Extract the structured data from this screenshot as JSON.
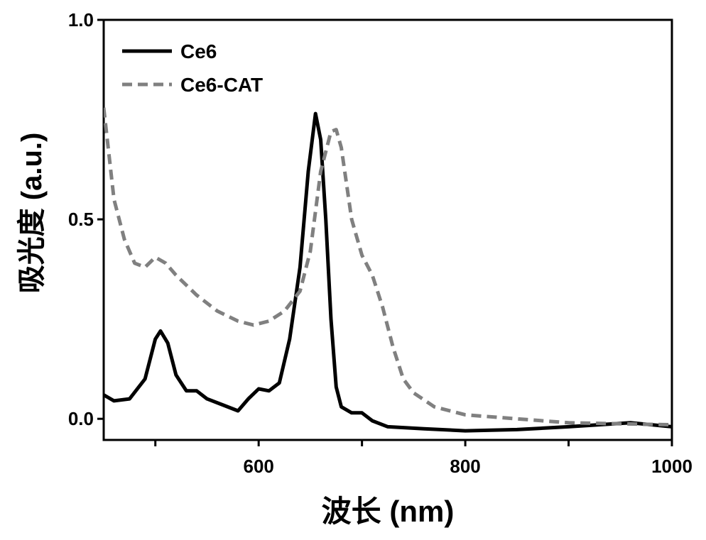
{
  "chart_data": {
    "type": "line",
    "title": "",
    "xlabel": "波长 (nm)",
    "ylabel": "吸光度 (a.u.)",
    "xlim": [
      450,
      1000
    ],
    "ylim": [
      -0.053,
      1.0
    ],
    "xticks": [
      500,
      600,
      700,
      800,
      900,
      1000
    ],
    "xtick_labels": [
      "600",
      "800",
      "1000"
    ],
    "xtick_label_values": [
      600,
      800,
      1000
    ],
    "yticks": [
      0.0,
      0.5,
      1.0
    ],
    "ytick_labels": [
      "0.0",
      "0.5",
      "1.0"
    ],
    "grid": false,
    "legend_position": "top-left",
    "series": [
      {
        "name": "Ce6",
        "color": "#000000",
        "style": "solid",
        "x": [
          450,
          460,
          475,
          490,
          500,
          505,
          512,
          520,
          530,
          540,
          550,
          565,
          580,
          590,
          600,
          610,
          620,
          630,
          640,
          648,
          655,
          660,
          665,
          670,
          675,
          680,
          690,
          700,
          710,
          725,
          760,
          800,
          850,
          900,
          960,
          1000
        ],
        "y": [
          0.06,
          0.045,
          0.05,
          0.1,
          0.2,
          0.22,
          0.19,
          0.11,
          0.07,
          0.07,
          0.05,
          0.035,
          0.02,
          0.05,
          0.075,
          0.07,
          0.09,
          0.2,
          0.38,
          0.62,
          0.765,
          0.7,
          0.5,
          0.25,
          0.08,
          0.03,
          0.015,
          0.015,
          -0.005,
          -0.02,
          -0.025,
          -0.03,
          -0.027,
          -0.02,
          -0.01,
          -0.02
        ]
      },
      {
        "name": "Ce6-CAT",
        "color": "#808080",
        "style": "dashed",
        "x": [
          450,
          460,
          470,
          480,
          490,
          500,
          510,
          520,
          540,
          560,
          580,
          595,
          610,
          625,
          640,
          650,
          660,
          670,
          675,
          680,
          690,
          700,
          710,
          720,
          730,
          740,
          750,
          770,
          800,
          850,
          900,
          1000
        ],
        "y": [
          0.78,
          0.55,
          0.45,
          0.39,
          0.38,
          0.405,
          0.39,
          0.36,
          0.31,
          0.27,
          0.245,
          0.235,
          0.245,
          0.27,
          0.32,
          0.42,
          0.62,
          0.72,
          0.725,
          0.68,
          0.5,
          0.41,
          0.36,
          0.28,
          0.18,
          0.1,
          0.065,
          0.03,
          0.01,
          0.0,
          -0.01,
          -0.015
        ]
      }
    ]
  }
}
